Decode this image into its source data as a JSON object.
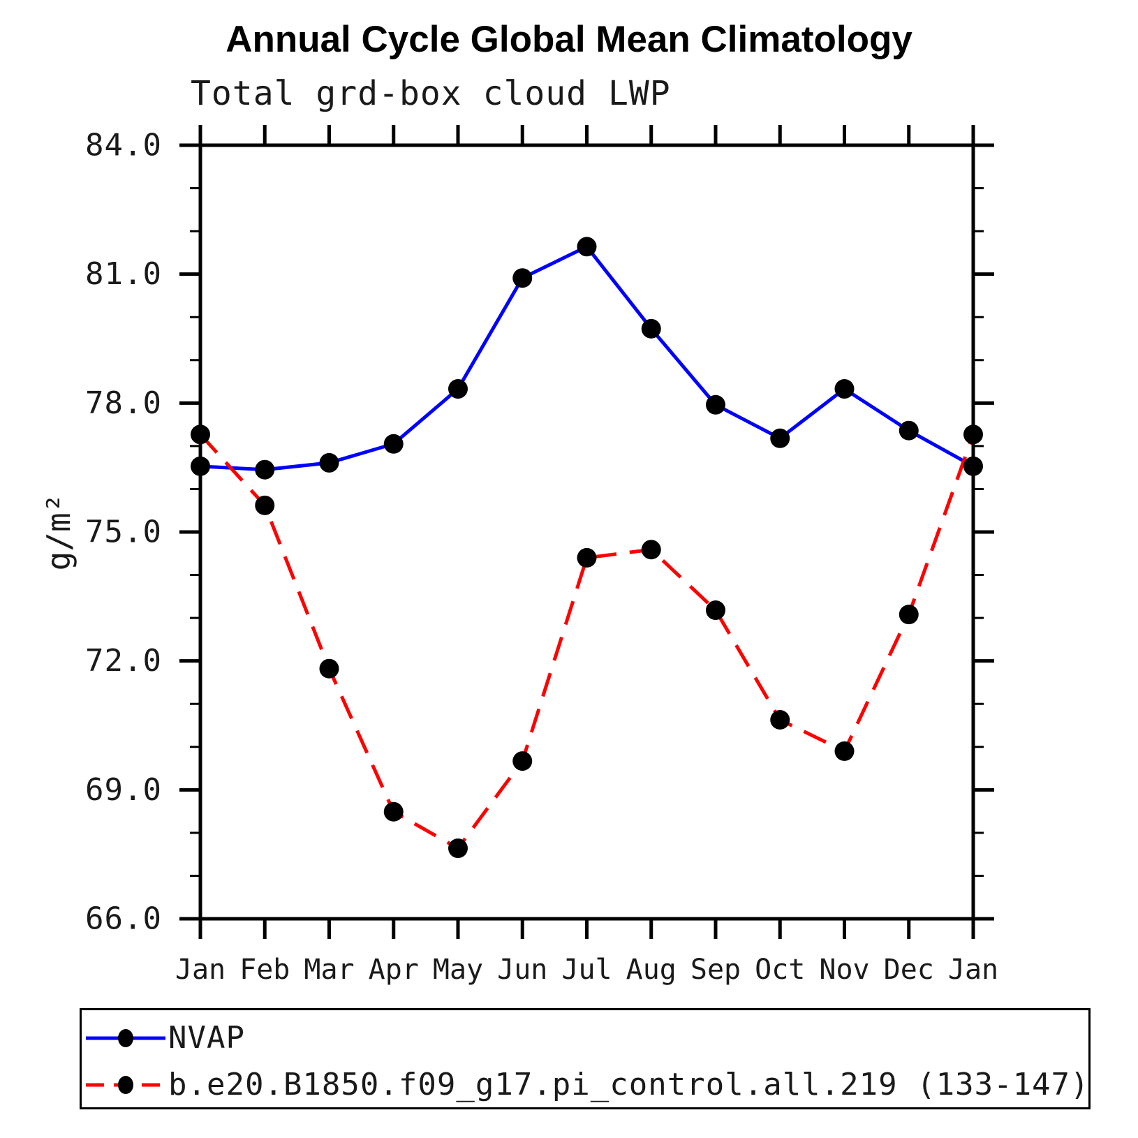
{
  "page": {
    "background_color": "#ffffff",
    "text_color": "#000000"
  },
  "chart_data": {
    "type": "line",
    "title": "Annual Cycle Global Mean Climatology",
    "subtitle": "Total grd-box cloud LWP",
    "ylabel": "g/m²",
    "xlabel": "",
    "x_categories": [
      "Jan",
      "Feb",
      "Mar",
      "Apr",
      "May",
      "Jun",
      "Jul",
      "Aug",
      "Sep",
      "Oct",
      "Nov",
      "Dec",
      "Jan"
    ],
    "ylim": [
      66.0,
      84.0
    ],
    "ytick_major_interval": 3.0,
    "ytick_minor_interval": 1.0,
    "ytick_labels": [
      "66.0",
      "69.0",
      "72.0",
      "75.0",
      "78.0",
      "81.0",
      "84.0"
    ],
    "grid": false,
    "tick_direction": "out",
    "legend_position": "bottom",
    "axis_color": "#000000",
    "marker_color": "#000000",
    "series": [
      {
        "name": "NVAP",
        "color": "#0000ff",
        "line_style": "solid",
        "marker": "circle",
        "values": [
          76.53,
          76.45,
          76.61,
          77.05,
          78.33,
          80.91,
          81.64,
          79.73,
          77.96,
          77.18,
          78.33,
          77.36,
          76.53
        ]
      },
      {
        "name": "b.e20.B1850.f09_g17.pi_control.all.219 (133-147)",
        "color": "#ff0000",
        "line_style": "dashed",
        "marker": "circle",
        "values": [
          77.27,
          75.62,
          71.82,
          68.49,
          67.64,
          69.67,
          74.4,
          74.59,
          73.18,
          70.63,
          69.9,
          73.08,
          77.27
        ]
      }
    ]
  }
}
